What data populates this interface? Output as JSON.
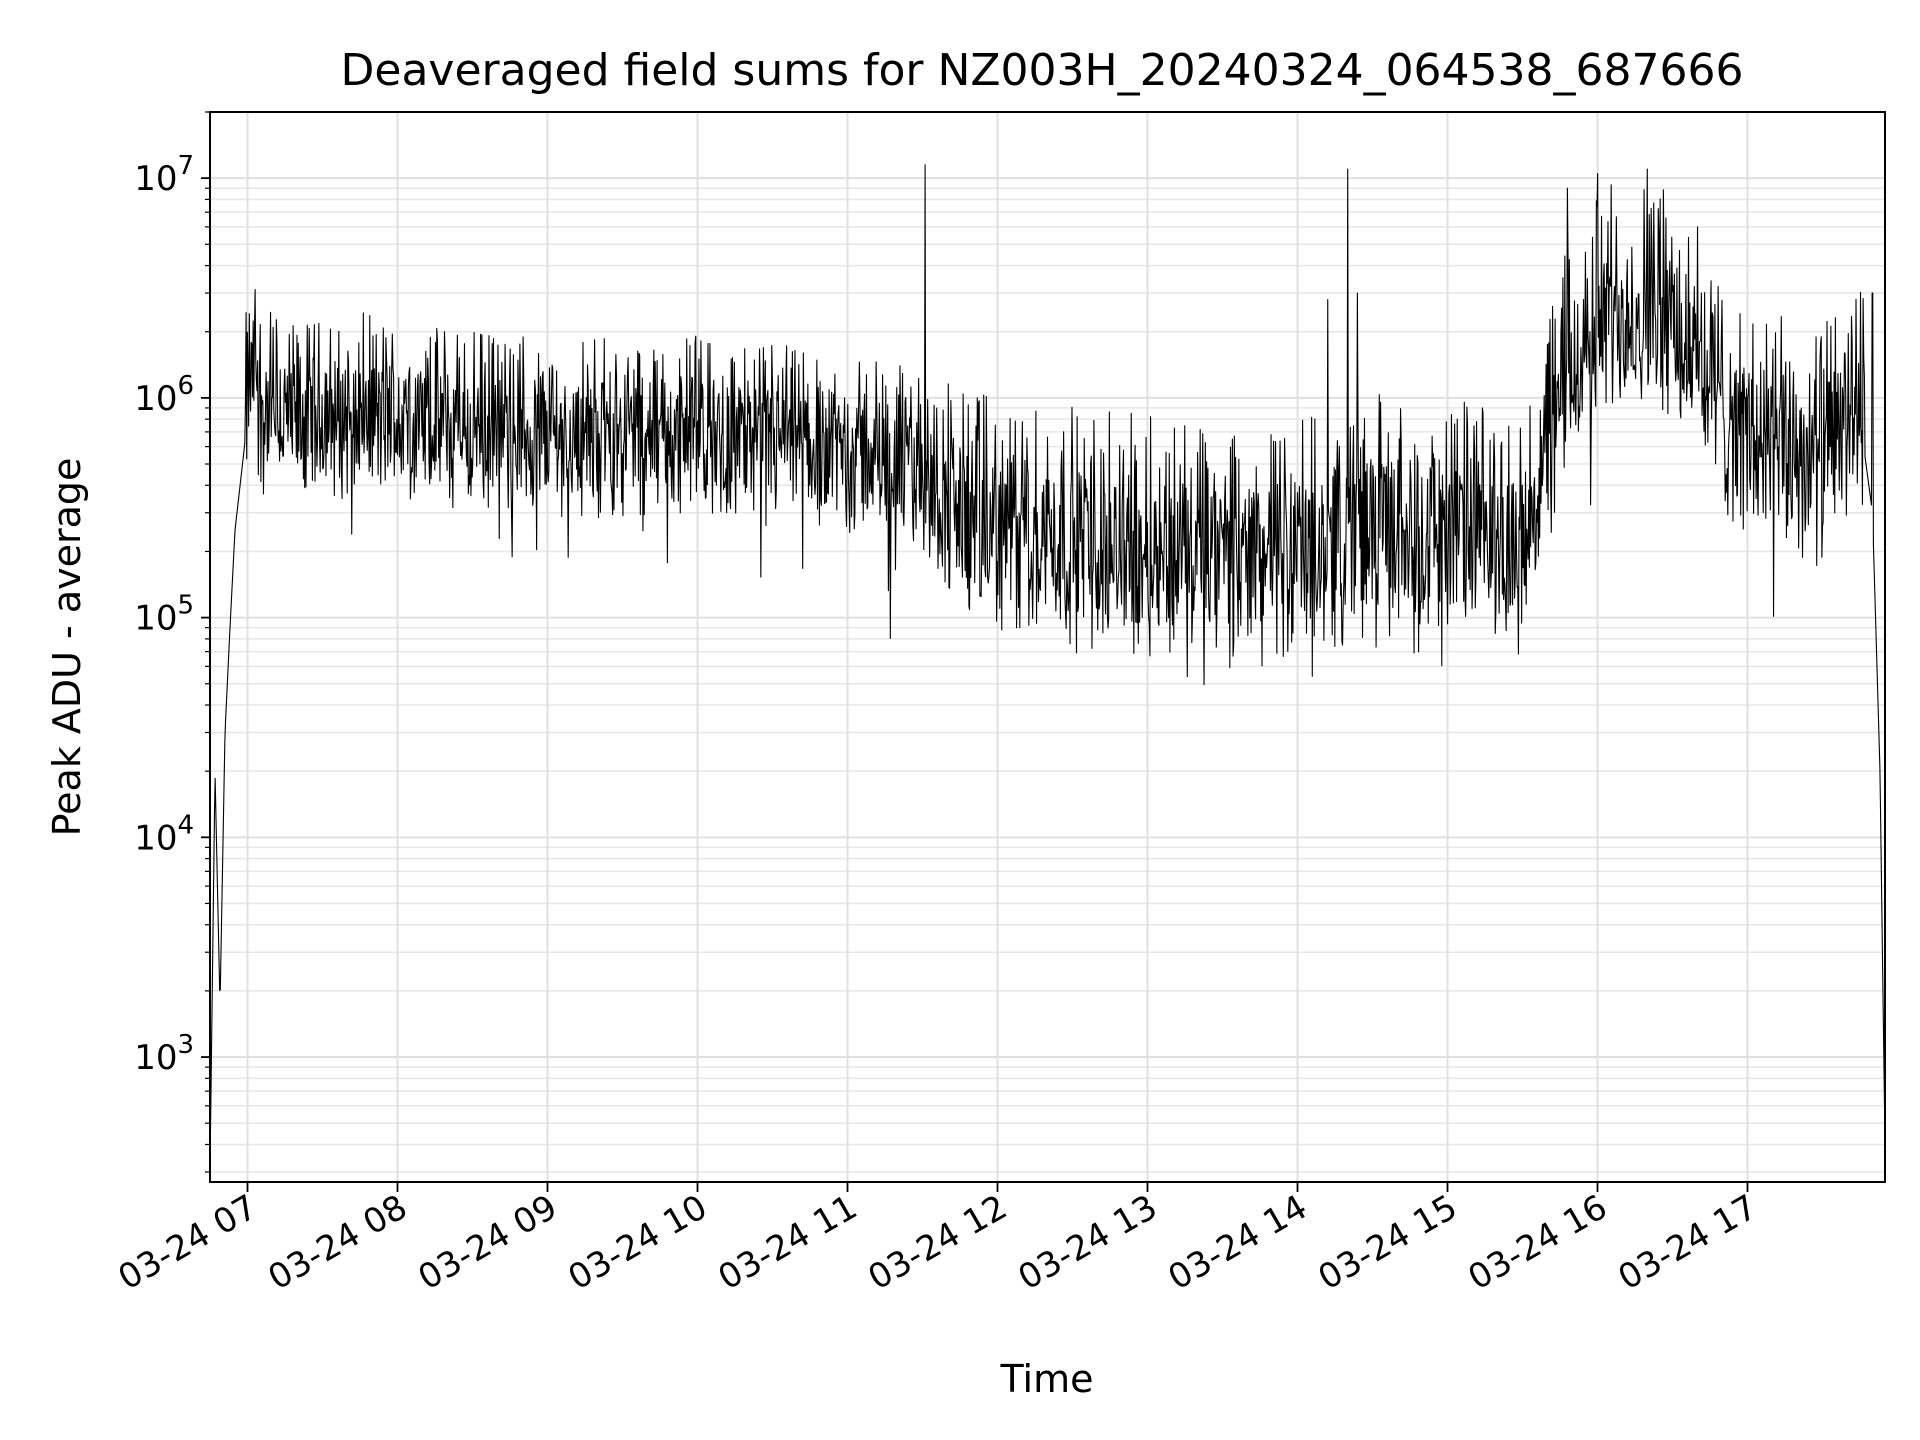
{
  "chart_data": {
    "type": "line",
    "title": "Deaveraged field sums for NZ003H_20240324_064538_687666",
    "xlabel": "Time",
    "ylabel": "Peak ADU - average",
    "y_scale": "log",
    "ylim": [
      270,
      20000000
    ],
    "xlim": [
      "03-24 06:45",
      "03-24 17:55"
    ],
    "grid": true,
    "x_ticks": [
      "03-24 07",
      "03-24 08",
      "03-24 09",
      "03-24 10",
      "03-24 11",
      "03-24 12",
      "03-24 13",
      "03-24 14",
      "03-24 15",
      "03-24 16",
      "03-24 17"
    ],
    "y_ticks": [
      {
        "base": "10",
        "exp": "3",
        "value": 1000
      },
      {
        "base": "10",
        "exp": "4",
        "value": 10000
      },
      {
        "base": "10",
        "exp": "5",
        "value": 100000
      },
      {
        "base": "10",
        "exp": "6",
        "value": 1000000
      },
      {
        "base": "10",
        "exp": "7",
        "value": 10000000
      }
    ],
    "line_color": "#000000",
    "series": [
      {
        "x": [
          "06:45",
          "06:47",
          "06:49",
          "06:51",
          "06:53",
          "06:55",
          "06:58",
          "07:00",
          "07:03",
          "07:06",
          "07:10",
          "07:15",
          "07:20",
          "07:30",
          "07:45",
          "08:00",
          "08:30",
          "09:00",
          "09:30",
          "10:00",
          "10:30",
          "11:00",
          "11:30",
          "11:50",
          "12:00",
          "12:30",
          "13:00",
          "13:30",
          "14:00",
          "14:30",
          "15:00",
          "15:30",
          "15:45",
          "16:00",
          "16:15",
          "16:30",
          "16:45",
          "17:00",
          "17:30",
          "17:45",
          "17:50",
          "17:53",
          "17:55"
        ],
        "y": [
          300,
          20000,
          1700,
          30000,
          90000,
          250000,
          500000,
          800000,
          1200000,
          700000,
          700000,
          650000,
          600000,
          650000,
          700000,
          650000,
          600000,
          560000,
          560000,
          560000,
          520000,
          480000,
          380000,
          200000,
          200000,
          180000,
          160000,
          140000,
          150000,
          200000,
          200000,
          160000,
          800000,
          1800000,
          2000000,
          1800000,
          900000,
          500000,
          400000,
          800000,
          300000,
          20000,
          400
        ]
      }
    ],
    "spikes": [
      {
        "x": "11:31",
        "y": 11500000
      },
      {
        "x": "14:20",
        "y": 11000000
      },
      {
        "x": "14:12",
        "y": 2800000
      },
      {
        "x": "14:24",
        "y": 3000000
      },
      {
        "x": "15:48",
        "y": 9000000
      },
      {
        "x": "16:00",
        "y": 10500000
      },
      {
        "x": "16:20",
        "y": 11000000
      },
      {
        "x": "16:40",
        "y": 6000000
      },
      {
        "x": "17:50",
        "y": 3000000
      }
    ]
  }
}
